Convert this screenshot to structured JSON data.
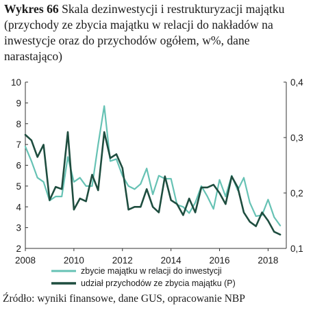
{
  "title": {
    "lead": "Wykres 66",
    "text": "Skala dezinwestycji i restrukturyzacji majątku (przychody ze zbycia majątku w relacji do nakładów na inwestycje oraz do przychodów ogółem, w%, dane narastająco)"
  },
  "source": "Źródło: wyniki finansowe, dane GUS, opracowanie NBP",
  "chart_data": {
    "type": "line",
    "x_ticks": [
      "2008",
      "2010",
      "2012",
      "2014",
      "2016",
      "2018"
    ],
    "xlim": [
      2008,
      2018.75
    ],
    "left_axis": {
      "ylim": [
        2,
        10
      ],
      "ticks": [
        "2",
        "3",
        "4",
        "5",
        "6",
        "7",
        "8",
        "9",
        "10"
      ]
    },
    "right_axis": {
      "ylim": [
        0.1,
        0.4
      ],
      "ticks": [
        "0,1",
        "0,2",
        "0,3",
        "0,4"
      ]
    },
    "grid": false,
    "legend_position": "bottom",
    "series": [
      {
        "name": "zbycie majątku w relacji do inwestycji",
        "axis": "left",
        "color": "#66c2b4",
        "x": [
          2008.0,
          2008.25,
          2008.5,
          2008.75,
          2009.0,
          2009.25,
          2009.5,
          2009.75,
          2010.0,
          2010.25,
          2010.5,
          2010.75,
          2011.0,
          2011.25,
          2011.5,
          2011.75,
          2012.0,
          2012.25,
          2012.5,
          2012.75,
          2013.0,
          2013.25,
          2013.5,
          2013.75,
          2014.0,
          2014.25,
          2014.5,
          2014.75,
          2015.0,
          2015.25,
          2015.5,
          2015.75,
          2016.0,
          2016.25,
          2016.5,
          2016.75,
          2017.0,
          2017.25,
          2017.5,
          2017.75,
          2018.0,
          2018.25,
          2018.5
        ],
        "values": [
          6.9,
          6.2,
          5.4,
          5.2,
          4.3,
          4.5,
          4.5,
          6.4,
          5.2,
          5.4,
          5.0,
          5.0,
          7.0,
          8.85,
          6.2,
          6.3,
          5.5,
          5.0,
          4.85,
          5.1,
          5.85,
          4.6,
          5.5,
          5.35,
          5.35,
          4.1,
          4.0,
          3.7,
          4.2,
          5.0,
          4.5,
          3.9,
          5.3,
          4.5,
          5.5,
          4.8,
          5.4,
          4.2,
          3.55,
          3.6,
          4.35,
          3.5,
          3.1
        ]
      },
      {
        "name": "udział przychodów ze zbycia majątku (P)",
        "axis": "right",
        "color": "#1e4d3f",
        "x": [
          2008.0,
          2008.25,
          2008.5,
          2008.75,
          2009.0,
          2009.25,
          2009.5,
          2009.75,
          2010.0,
          2010.25,
          2010.5,
          2010.75,
          2011.0,
          2011.25,
          2011.5,
          2011.75,
          2012.0,
          2012.25,
          2012.5,
          2012.75,
          2013.0,
          2013.25,
          2013.5,
          2013.75,
          2014.0,
          2014.25,
          2014.5,
          2014.75,
          2015.0,
          2015.25,
          2015.5,
          2015.75,
          2016.0,
          2016.25,
          2016.5,
          2016.75,
          2017.0,
          2017.25,
          2017.5,
          2017.75,
          2018.0,
          2018.25,
          2018.5
        ],
        "values": [
          0.305,
          0.295,
          0.265,
          0.287,
          0.187,
          0.211,
          0.207,
          0.31,
          0.17,
          0.19,
          0.185,
          0.233,
          0.205,
          0.31,
          0.263,
          0.27,
          0.245,
          0.17,
          0.175,
          0.175,
          0.207,
          0.175,
          0.165,
          0.23,
          0.187,
          0.18,
          0.16,
          0.19,
          0.165,
          0.21,
          0.21,
          0.215,
          0.2,
          0.18,
          0.23,
          0.21,
          0.165,
          0.148,
          0.14,
          0.165,
          0.15,
          0.13,
          0.125
        ]
      }
    ]
  }
}
